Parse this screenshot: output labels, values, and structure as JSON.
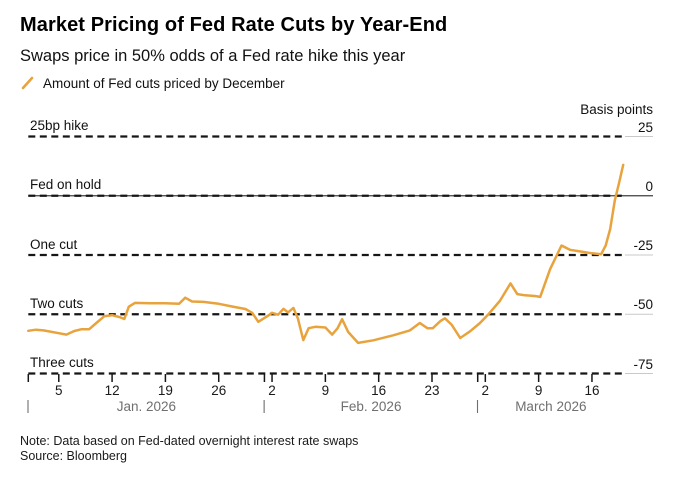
{
  "chart_data": {
    "type": "line",
    "title": "Market Pricing of Fed Rate Cuts by Year-End",
    "subtitle": "Swaps price in 50% odds of a Fed rate hike this year",
    "ylabel": "Basis points",
    "ylim": [
      -75,
      25
    ],
    "xlim_days": [
      0,
      78.5
    ],
    "grid": "horizontal dashed black lines every 25 basis points",
    "legend_position": "top-left",
    "y_ticks": [
      {
        "value": 25,
        "tick_label": "25",
        "level_label": "25bp hike"
      },
      {
        "value": 0,
        "tick_label": "0",
        "level_label": "Fed on hold"
      },
      {
        "value": -25,
        "tick_label": "-25",
        "level_label": "One cut"
      },
      {
        "value": -50,
        "tick_label": "-50",
        "level_label": "Two cuts"
      },
      {
        "value": -75,
        "tick_label": "-75",
        "level_label": "Three cuts"
      }
    ],
    "x_ticks": [
      {
        "day": 4,
        "label": "5"
      },
      {
        "day": 11,
        "label": "12"
      },
      {
        "day": 18,
        "label": "19"
      },
      {
        "day": 25,
        "label": "26"
      },
      {
        "day": 32,
        "label": "2"
      },
      {
        "day": 39,
        "label": "9"
      },
      {
        "day": 46,
        "label": "16"
      },
      {
        "day": 53,
        "label": "23"
      },
      {
        "day": 60,
        "label": "2"
      },
      {
        "day": 67,
        "label": "9"
      },
      {
        "day": 74,
        "label": "16"
      }
    ],
    "months": [
      {
        "start_day": 0,
        "label": "Jan. 2026"
      },
      {
        "start_day": 31,
        "label": "Feb. 2026"
      },
      {
        "start_day": 59,
        "label": "March 2026"
      }
    ],
    "month_separator": "|",
    "series": [
      {
        "name": "Amount of Fed cuts priced by December",
        "color": "#E8A33D",
        "x_unit": "days since Jan 1 2026",
        "y_unit": "basis points",
        "points": [
          [
            0,
            -57
          ],
          [
            1,
            -56.5
          ],
          [
            2,
            -56.8
          ],
          [
            4,
            -58
          ],
          [
            5,
            -58.6
          ],
          [
            6,
            -57.1
          ],
          [
            7,
            -56.3
          ],
          [
            8,
            -56.3
          ],
          [
            9,
            -53.5
          ],
          [
            10,
            -50.8
          ],
          [
            11,
            -50.4
          ],
          [
            12,
            -51.2
          ],
          [
            12.6,
            -52
          ],
          [
            13.2,
            -46.8
          ],
          [
            14,
            -45.2
          ],
          [
            16,
            -45.4
          ],
          [
            18,
            -45.4
          ],
          [
            19.8,
            -45.6
          ],
          [
            20.6,
            -43
          ],
          [
            21.5,
            -44.6
          ],
          [
            23,
            -44.8
          ],
          [
            25,
            -45.6
          ],
          [
            27,
            -46.9
          ],
          [
            28.5,
            -47.8
          ],
          [
            29.4,
            -49.4
          ],
          [
            30.2,
            -53.2
          ],
          [
            31.4,
            -50.8
          ],
          [
            32,
            -49.4
          ],
          [
            32.8,
            -50.2
          ],
          [
            33.5,
            -47.7
          ],
          [
            34.1,
            -49.2
          ],
          [
            34.8,
            -47.3
          ],
          [
            35.4,
            -51.8
          ],
          [
            36.1,
            -60.9
          ],
          [
            36.8,
            -55.9
          ],
          [
            37.7,
            -55.3
          ],
          [
            39,
            -55.6
          ],
          [
            39.9,
            -58.6
          ],
          [
            40.6,
            -55.9
          ],
          [
            41.2,
            -52.1
          ],
          [
            42,
            -57.5
          ],
          [
            43.3,
            -62.1
          ],
          [
            45.3,
            -61
          ],
          [
            47.9,
            -58.9
          ],
          [
            50.1,
            -56.8
          ],
          [
            51.4,
            -53.7
          ],
          [
            52.4,
            -55.9
          ],
          [
            53.1,
            -55.9
          ],
          [
            54.1,
            -52.9
          ],
          [
            54.7,
            -51.7
          ],
          [
            55.6,
            -54.5
          ],
          [
            56.7,
            -60
          ],
          [
            58,
            -57.2
          ],
          [
            59.3,
            -53.7
          ],
          [
            60.4,
            -50
          ],
          [
            61.9,
            -44.4
          ],
          [
            63.3,
            -37
          ],
          [
            64.2,
            -41.5
          ],
          [
            65.2,
            -42
          ],
          [
            66.5,
            -42.3
          ],
          [
            67.2,
            -42.7
          ],
          [
            68.5,
            -31
          ],
          [
            70,
            -21
          ],
          [
            71.1,
            -22.8
          ],
          [
            72.4,
            -23.5
          ],
          [
            74,
            -24.3
          ],
          [
            75.2,
            -24.7
          ],
          [
            75.8,
            -21
          ],
          [
            76.4,
            -14
          ],
          [
            77,
            -2
          ],
          [
            77.6,
            6
          ],
          [
            78.1,
            13
          ]
        ]
      }
    ]
  },
  "footer": {
    "note": "Note: Data based on Fed-dated overnight interest rate swaps",
    "source": "Source: Bloomberg"
  },
  "colors": {
    "line": "#E8A33D",
    "grid_dash": "#161616",
    "zero_line": "#3f3f3f",
    "axis_extension": "#c9c9c9",
    "month_label": "#6f6f6f",
    "text": "#000000",
    "background": "#ffffff"
  }
}
